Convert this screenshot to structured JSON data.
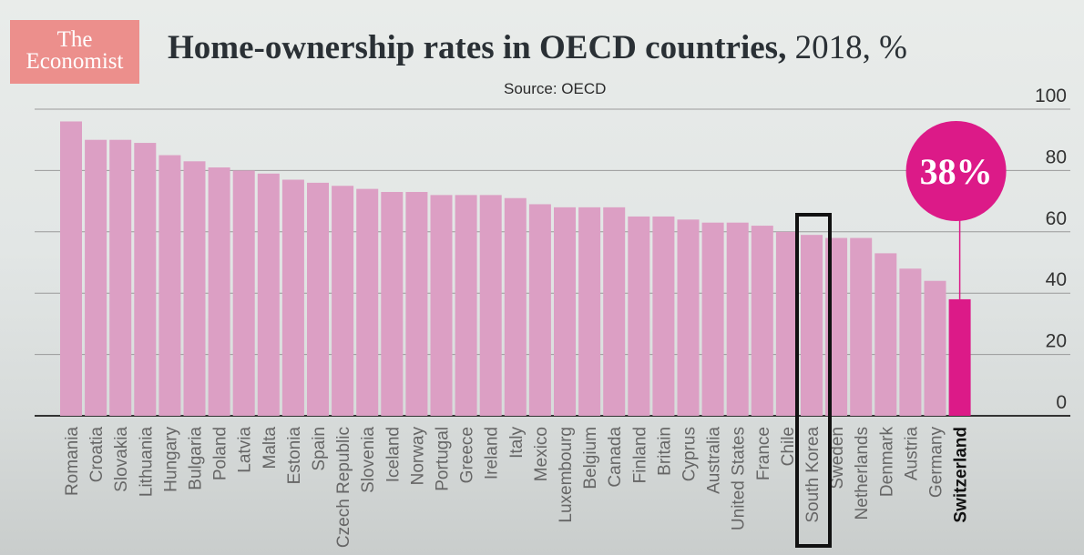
{
  "brand": {
    "line1": "The",
    "line2": "Economist"
  },
  "header": {
    "title_main": "Home-ownership rates in OECD countries,",
    "title_suffix": " 2018, %",
    "source": "Source: OECD"
  },
  "colors": {
    "bar": "#dc9fc4",
    "highlight": "#dc1a88",
    "logo": "#ec8f8c",
    "gridline": "#9a9a9a",
    "marker_box": "#111111"
  },
  "chart_data": {
    "type": "bar",
    "categories": [
      "Romania",
      "Croatia",
      "Slovakia",
      "Lithuania",
      "Hungary",
      "Bulgaria",
      "Poland",
      "Latvia",
      "Malta",
      "Estonia",
      "Spain",
      "Czech Republic",
      "Slovenia",
      "Iceland",
      "Norway",
      "Portugal",
      "Greece",
      "Ireland",
      "Italy",
      "Mexico",
      "Luxembourg",
      "Belgium",
      "Canada",
      "Finland",
      "Britain",
      "Cyprus",
      "Australia",
      "United States",
      "France",
      "Chile",
      "South Korea",
      "Sweden",
      "Netherlands",
      "Denmark",
      "Austria",
      "Germany",
      "Switzerland"
    ],
    "values": [
      96,
      90,
      90,
      89,
      85,
      83,
      81,
      80,
      79,
      77,
      76,
      75,
      74,
      73,
      73,
      72,
      72,
      72,
      71,
      69,
      68,
      68,
      68,
      65,
      65,
      64,
      63,
      63,
      62,
      60,
      59,
      58,
      58,
      53,
      48,
      44,
      38
    ],
    "ylim": [
      0,
      100
    ],
    "yticks": [
      0,
      20,
      40,
      60,
      80,
      100
    ],
    "grid": true,
    "y_axis_side": "right",
    "highlight": {
      "category": "Switzerland",
      "label": "38%"
    },
    "boxed_category": "South Korea",
    "title": "Home-ownership rates in OECD countries, 2018, %",
    "xlabel": "",
    "ylabel": ""
  }
}
